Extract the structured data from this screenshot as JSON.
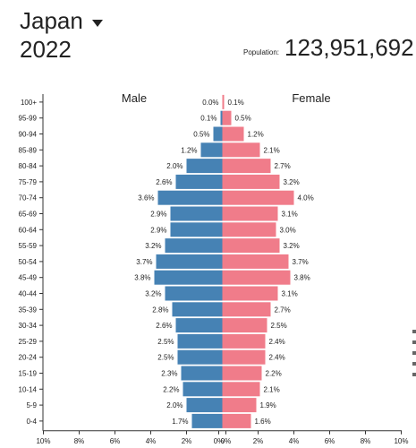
{
  "header": {
    "country": "Japan",
    "year": "2022",
    "population_label": "Population:",
    "population_value": "123,951,692"
  },
  "colors": {
    "male": "#4682b4",
    "female": "#f07c8a"
  },
  "chart_data": {
    "type": "bar",
    "orientation": "horizontal-diverging",
    "title": "",
    "xlabel": "",
    "ylabel": "",
    "xlim": [
      -10,
      10
    ],
    "x_ticks": [
      "10%",
      "8%",
      "6%",
      "4%",
      "2%",
      "0%",
      "0%",
      "2%",
      "4%",
      "6%",
      "8%",
      "10%"
    ],
    "categories": [
      "100+",
      "95-99",
      "90-94",
      "85-89",
      "80-84",
      "75-79",
      "70-74",
      "65-69",
      "60-64",
      "55-59",
      "50-54",
      "45-49",
      "40-44",
      "35-39",
      "30-34",
      "25-29",
      "20-24",
      "15-19",
      "10-14",
      "5-9",
      "0-4"
    ],
    "series": [
      {
        "name": "Male",
        "values": [
          0.0,
          0.1,
          0.5,
          1.2,
          2.0,
          2.6,
          3.6,
          2.9,
          2.9,
          3.2,
          3.7,
          3.8,
          3.2,
          2.8,
          2.6,
          2.5,
          2.5,
          2.3,
          2.2,
          2.0,
          1.7
        ],
        "labels": [
          "0.0%",
          "0.1%",
          "0.5%",
          "1.2%",
          "2.0%",
          "2.6%",
          "3.6%",
          "2.9%",
          "2.9%",
          "3.2%",
          "3.7%",
          "3.8%",
          "3.2%",
          "2.8%",
          "2.6%",
          "2.5%",
          "2.5%",
          "2.3%",
          "2.2%",
          "2.0%",
          "1.7%"
        ]
      },
      {
        "name": "Female",
        "values": [
          0.1,
          0.5,
          1.2,
          2.1,
          2.7,
          3.2,
          4.0,
          3.1,
          3.0,
          3.2,
          3.7,
          3.8,
          3.1,
          2.7,
          2.5,
          2.4,
          2.4,
          2.2,
          2.1,
          1.9,
          1.6
        ],
        "labels": [
          "0.1%",
          "0.5%",
          "1.2%",
          "2.1%",
          "2.7%",
          "3.2%",
          "4.0%",
          "3.1%",
          "3.0%",
          "3.2%",
          "3.7%",
          "3.8%",
          "3.1%",
          "2.7%",
          "2.5%",
          "2.4%",
          "2.4%",
          "2.2%",
          "2.1%",
          "1.9%",
          "1.6%"
        ]
      }
    ]
  }
}
